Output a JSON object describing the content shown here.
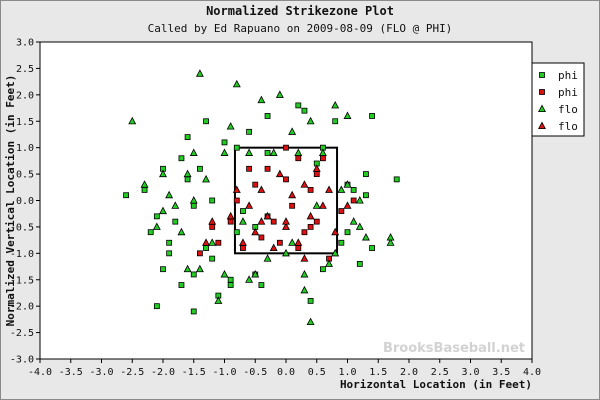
{
  "chart_data": {
    "type": "scatter",
    "title": "Normalized Strikezone Plot",
    "subtitle": "Called by Ed Rapuano on 2009-08-09 (FLO @ PHI)",
    "xlabel": "Horizontal Location (in Feet)",
    "ylabel": "Normalized Vertical Location (in Feet)",
    "xlim": [
      -4.0,
      4.0
    ],
    "ylim": [
      -3.0,
      3.0
    ],
    "xticks": [
      "-4.0",
      "-3.5",
      "-3.0",
      "-2.5",
      "-2.0",
      "-1.5",
      "-1.0",
      "-0.5",
      "0.0",
      "0.5",
      "1.0",
      "1.5",
      "2.0",
      "2.5",
      "3.0",
      "3.5",
      "4.0"
    ],
    "yticks": [
      "3.0",
      "2.5",
      "2.0",
      "1.5",
      "1.0",
      "0.5",
      "0.0",
      "-0.5",
      "-1.0",
      "-1.5",
      "-2.0",
      "-2.5",
      "-3.0"
    ],
    "strike_zone": {
      "x": [
        -0.83,
        0.83
      ],
      "y": [
        -1.0,
        1.0
      ]
    },
    "legend_position": "top-right",
    "watermark": "BrooksBaseball.net",
    "colors": {
      "green": "#22cc22",
      "red": "#dd1111",
      "plot_bg": "#ffffff",
      "outer_bg": "#e8e8e8"
    },
    "series": [
      {
        "name": "phi",
        "marker": "square",
        "color": "#22cc22",
        "points": [
          [
            -2.6,
            0.1
          ],
          [
            -2.3,
            0.2
          ],
          [
            -2.2,
            -0.6
          ],
          [
            -2.1,
            -0.3
          ],
          [
            -2.0,
            -1.3
          ],
          [
            -2.0,
            0.6
          ],
          [
            -1.9,
            -0.8
          ],
          [
            -1.8,
            -0.4
          ],
          [
            -1.7,
            0.8
          ],
          [
            -1.7,
            -1.6
          ],
          [
            -1.6,
            1.2
          ],
          [
            -1.6,
            0.4
          ],
          [
            -1.5,
            -0.1
          ],
          [
            -1.5,
            -1.4
          ],
          [
            -1.4,
            0.6
          ],
          [
            -1.3,
            -0.9
          ],
          [
            -1.3,
            1.5
          ],
          [
            -1.2,
            -1.1
          ],
          [
            -1.2,
            0.0
          ],
          [
            -1.1,
            -1.8
          ],
          [
            -1.0,
            1.1
          ],
          [
            -0.9,
            -1.5
          ],
          [
            -0.8,
            -0.6
          ],
          [
            -0.8,
            1.0
          ],
          [
            -0.7,
            -0.2
          ],
          [
            -0.6,
            1.3
          ],
          [
            -0.5,
            -1.4
          ],
          [
            -0.4,
            -1.6
          ],
          [
            -0.3,
            1.6
          ],
          [
            -0.3,
            0.9
          ],
          [
            0.3,
            1.7
          ],
          [
            0.4,
            -1.9
          ],
          [
            0.6,
            -1.3
          ],
          [
            0.6,
            1.0
          ],
          [
            0.8,
            1.5
          ],
          [
            0.9,
            -0.8
          ],
          [
            1.0,
            -0.6
          ],
          [
            1.0,
            0.3
          ],
          [
            1.1,
            0.2
          ],
          [
            1.2,
            -1.2
          ],
          [
            1.3,
            0.1
          ],
          [
            1.3,
            0.5
          ],
          [
            1.4,
            -0.9
          ],
          [
            1.8,
            0.4
          ],
          [
            1.4,
            1.6
          ],
          [
            -0.5,
            -0.5
          ],
          [
            0.2,
            1.8
          ],
          [
            -1.9,
            -1.0
          ],
          [
            -2.1,
            -2.0
          ],
          [
            -1.5,
            -2.1
          ],
          [
            -0.9,
            -1.6
          ],
          [
            0.5,
            0.7
          ]
        ]
      },
      {
        "name": "phi",
        "marker": "square",
        "color": "#dd1111",
        "points": [
          [
            -1.4,
            -1.0
          ],
          [
            -1.2,
            -0.5
          ],
          [
            -1.1,
            -0.8
          ],
          [
            -0.7,
            -0.9
          ],
          [
            -0.8,
            0.0
          ],
          [
            -0.5,
            0.3
          ],
          [
            -0.4,
            -0.7
          ],
          [
            -0.3,
            0.6
          ],
          [
            -0.3,
            -0.3
          ],
          [
            -0.1,
            -0.8
          ],
          [
            0.0,
            0.4
          ],
          [
            0.1,
            -0.1
          ],
          [
            0.2,
            0.8
          ],
          [
            0.3,
            -0.6
          ],
          [
            0.4,
            0.2
          ],
          [
            0.5,
            -0.4
          ],
          [
            0.6,
            0.8
          ],
          [
            0.7,
            -1.1
          ],
          [
            0.9,
            -0.2
          ],
          [
            1.1,
            0.0
          ],
          [
            0.0,
            1.0
          ],
          [
            -0.2,
            -0.4
          ],
          [
            0.4,
            -0.5
          ],
          [
            -0.6,
            0.6
          ],
          [
            -0.9,
            -0.4
          ],
          [
            0.2,
            -0.9
          ],
          [
            0.5,
            0.5
          ]
        ]
      },
      {
        "name": "flo",
        "marker": "triangle",
        "color": "#22cc22",
        "points": [
          [
            -2.5,
            1.5
          ],
          [
            -2.3,
            0.3
          ],
          [
            -2.1,
            -0.5
          ],
          [
            -2.0,
            0.5
          ],
          [
            -1.8,
            -0.1
          ],
          [
            -1.7,
            -0.6
          ],
          [
            -1.6,
            0.5
          ],
          [
            -1.5,
            0.9
          ],
          [
            -1.4,
            2.4
          ],
          [
            -1.4,
            -1.3
          ],
          [
            -1.3,
            0.4
          ],
          [
            -1.2,
            -0.8
          ],
          [
            -1.1,
            -1.9
          ],
          [
            -1.0,
            0.9
          ],
          [
            -1.0,
            -1.4
          ],
          [
            -0.9,
            1.4
          ],
          [
            -0.8,
            2.2
          ],
          [
            -0.7,
            -0.4
          ],
          [
            -0.6,
            0.9
          ],
          [
            -0.5,
            -1.4
          ],
          [
            -0.4,
            1.9
          ],
          [
            -0.3,
            -1.1
          ],
          [
            -0.2,
            0.9
          ],
          [
            -0.1,
            2.0
          ],
          [
            0.0,
            -1.0
          ],
          [
            0.1,
            1.3
          ],
          [
            0.2,
            0.9
          ],
          [
            0.3,
            -1.4
          ],
          [
            0.3,
            -1.7
          ],
          [
            0.4,
            1.5
          ],
          [
            0.5,
            -0.1
          ],
          [
            0.6,
            0.9
          ],
          [
            0.7,
            -1.2
          ],
          [
            0.8,
            1.8
          ],
          [
            0.9,
            0.2
          ],
          [
            1.0,
            1.6
          ],
          [
            1.1,
            -0.4
          ],
          [
            1.2,
            0.0
          ],
          [
            1.3,
            -0.7
          ],
          [
            1.7,
            -0.8
          ],
          [
            1.7,
            -0.7
          ],
          [
            1.0,
            0.3
          ],
          [
            0.8,
            -1.0
          ],
          [
            -1.9,
            0.1
          ],
          [
            -1.6,
            -1.3
          ],
          [
            -2.0,
            -0.2
          ],
          [
            -0.6,
            -1.5
          ],
          [
            0.4,
            -2.3
          ],
          [
            1.2,
            -0.5
          ],
          [
            -1.5,
            0.0
          ],
          [
            0.1,
            -0.8
          ]
        ]
      },
      {
        "name": "flo",
        "marker": "triangle",
        "color": "#dd1111",
        "points": [
          [
            -1.3,
            -0.8
          ],
          [
            -1.2,
            -0.4
          ],
          [
            -0.9,
            -0.3
          ],
          [
            -0.8,
            0.2
          ],
          [
            -0.6,
            -0.1
          ],
          [
            -0.5,
            -0.6
          ],
          [
            -0.4,
            0.2
          ],
          [
            -0.3,
            -0.3
          ],
          [
            -0.2,
            -0.9
          ],
          [
            -0.1,
            0.5
          ],
          [
            0.0,
            -0.5
          ],
          [
            0.1,
            0.1
          ],
          [
            0.2,
            -0.8
          ],
          [
            0.3,
            0.3
          ],
          [
            0.4,
            -0.3
          ],
          [
            0.5,
            0.6
          ],
          [
            0.6,
            -0.1
          ],
          [
            0.7,
            0.2
          ],
          [
            0.8,
            -0.6
          ],
          [
            1.0,
            -0.1
          ],
          [
            -0.7,
            -0.8
          ],
          [
            0.0,
            -0.4
          ],
          [
            0.3,
            -1.1
          ],
          [
            -0.4,
            -0.4
          ]
        ]
      }
    ]
  }
}
